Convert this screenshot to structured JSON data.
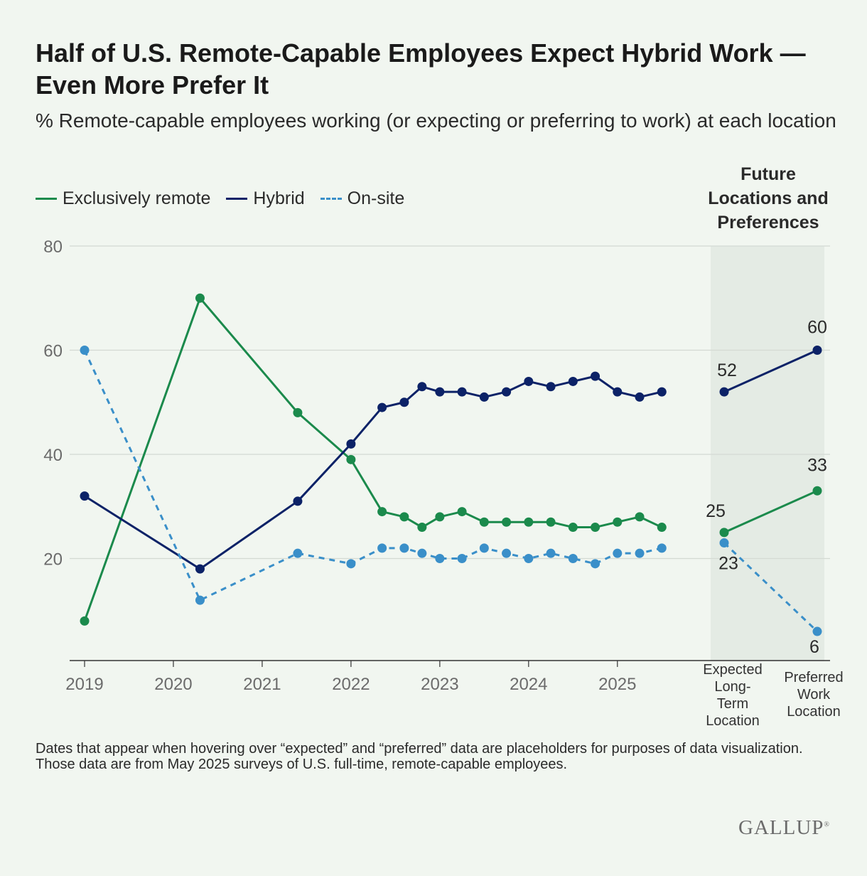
{
  "title": "Half of U.S. Remote-Capable Employees Expect Hybrid Work — Even More Prefer It",
  "subtitle": "% Remote-capable employees working (or expecting or preferring to work) at each location",
  "legend": [
    {
      "label": "Exclusively remote",
      "color": "#1b8a4c",
      "dash": false
    },
    {
      "label": "Hybrid",
      "color": "#0c2267",
      "dash": false
    },
    {
      "label": "On-site",
      "color": "#3a8fc9",
      "dash": true
    }
  ],
  "future_heading": "Future Locations and Preferences",
  "future_labels": [
    "Expected Long-Term Location",
    "Preferred Work Location"
  ],
  "footnote": "Dates that appear when hovering over “expected” and “preferred” data are placeholders for purposes of data visualization. Those data are from May 2025 surveys of U.S. full-time, remote-capable employees.",
  "brand": "GALLUP",
  "chart_data": {
    "type": "line",
    "title": "Half of U.S. Remote-Capable Employees Expect Hybrid Work — Even More Prefer It",
    "ylabel": "",
    "xlabel": "",
    "ylim": [
      0,
      80
    ],
    "yticks": [
      20,
      40,
      60,
      80
    ],
    "xlim": [
      2019.0,
      2025.85
    ],
    "xticks": [
      "2019",
      "2020",
      "2021",
      "2022",
      "2023",
      "2024",
      "2025"
    ],
    "grid": true,
    "x": [
      2019.0,
      2020.3,
      2021.4,
      2022.0,
      2022.35,
      2022.6,
      2022.8,
      2023.0,
      2023.25,
      2023.5,
      2023.75,
      2024.0,
      2024.25,
      2024.5,
      2024.75,
      2025.0,
      2025.25,
      2025.5
    ],
    "series": [
      {
        "name": "Exclusively remote",
        "color": "#1b8a4c",
        "dashed": false,
        "values": [
          8,
          70,
          48,
          39,
          29,
          28,
          26,
          28,
          29,
          27,
          27,
          27,
          27,
          26,
          26,
          27,
          28,
          26
        ],
        "future": [
          25,
          33
        ]
      },
      {
        "name": "Hybrid",
        "color": "#0c2267",
        "dashed": false,
        "values": [
          32,
          18,
          31,
          42,
          49,
          50,
          53,
          52,
          52,
          51,
          52,
          54,
          53,
          54,
          55,
          52,
          51,
          52
        ],
        "future": [
          52,
          60
        ]
      },
      {
        "name": "On-site",
        "color": "#3a8fc9",
        "dashed": true,
        "values": [
          60,
          12,
          21,
          19,
          22,
          22,
          21,
          20,
          20,
          22,
          21,
          20,
          21,
          20,
          19,
          21,
          21,
          22
        ],
        "future": [
          23,
          6
        ]
      }
    ],
    "future_categories": [
      "Expected Long-Term Location",
      "Preferred Work Location"
    ],
    "annotations": [
      "52",
      "60",
      "25",
      "33",
      "23",
      "6"
    ]
  }
}
